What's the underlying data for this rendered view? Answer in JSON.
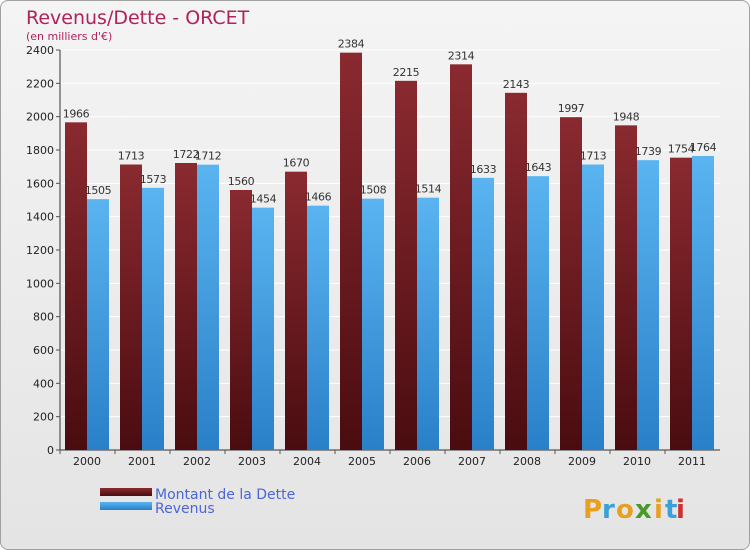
{
  "chart_data": {
    "type": "bar",
    "title": "Revenus/Dette - ORCET",
    "subtitle": "(en milliers d'€)",
    "categories": [
      "2000",
      "2001",
      "2002",
      "2003",
      "2004",
      "2005",
      "2006",
      "2007",
      "2008",
      "2009",
      "2010",
      "2011"
    ],
    "series": [
      {
        "name": "Montant de la Dette",
        "color": "#6e1e22",
        "values": [
          1966,
          1713,
          1722,
          1560,
          1670,
          2384,
          2215,
          2314,
          2143,
          1997,
          1948,
          1754
        ]
      },
      {
        "name": "Revenus",
        "color": "#4aa3e8",
        "values": [
          1505,
          1573,
          1712,
          1454,
          1466,
          1508,
          1514,
          1633,
          1643,
          1713,
          1739,
          1764
        ]
      }
    ],
    "ylim": [
      0,
      2400
    ],
    "yticks": [
      0,
      200,
      400,
      600,
      800,
      1000,
      1200,
      1400,
      1600,
      1800,
      2000,
      2200,
      2400
    ],
    "grid": true,
    "legend_position": "bottom-left"
  },
  "brand": {
    "letters": [
      "P",
      "r",
      "o",
      "x",
      "i",
      "t",
      "i"
    ],
    "colors": [
      "#e8a020",
      "#3aa0d8",
      "#e8a020",
      "#4a9a2a",
      "#e8a020",
      "#3aa0d8",
      "#d03030"
    ]
  }
}
